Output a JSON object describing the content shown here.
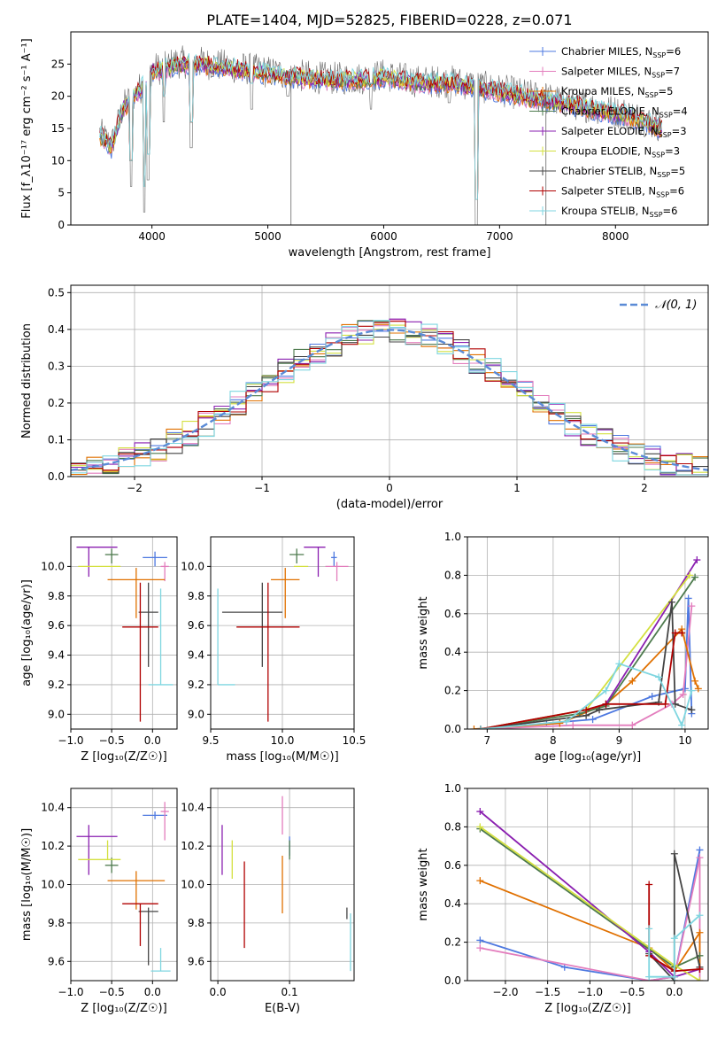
{
  "figure": {
    "title": "PLATE=1404, MJD=52825, FIBERID=0228, z=0.071"
  },
  "colors": [
    "#4e79e0",
    "#e37dbd",
    "#e07000",
    "#4d7a4d",
    "#8a1fb0",
    "#d4e040",
    "#444444",
    "#b00000",
    "#7fd6e0"
  ],
  "chart_data": [
    {
      "id": "spectrum",
      "type": "line",
      "xlabel": "wavelength [Angstrom, rest frame]",
      "ylabel": "Flux [f_λ10⁻¹⁷ erg cm⁻² s⁻¹ A⁻¹]",
      "xlim": [
        3300,
        8800
      ],
      "ylim": [
        0,
        30
      ],
      "xticks": [
        4000,
        5000,
        6000,
        7000,
        8000
      ],
      "yticks": [
        0,
        5,
        10,
        15,
        20,
        25
      ],
      "grid": false,
      "legend_position": "top-right",
      "legend": [
        {
          "name": "Chabrier MILES, N",
          "sub": "SSP",
          "suffix": "=6"
        },
        {
          "name": "Salpeter MILES, N",
          "sub": "SSP",
          "suffix": "=7"
        },
        {
          "name": "Kroupa MILES, N",
          "sub": "SSP",
          "suffix": "=5"
        },
        {
          "name": "Chabrier ELODIE, N",
          "sub": "SSP",
          "suffix": "=4"
        },
        {
          "name": "Salpeter ELODIE, N",
          "sub": "SSP",
          "suffix": "=3"
        },
        {
          "name": "Kroupa ELODIE, N",
          "sub": "SSP",
          "suffix": "=3"
        },
        {
          "name": "Chabrier STELIB, N",
          "sub": "SSP",
          "suffix": "=5"
        },
        {
          "name": "Salpeter STELIB, N",
          "sub": "SSP",
          "suffix": "=6"
        },
        {
          "name": "Kroupa STELIB, N",
          "sub": "SSP",
          "suffix": "=6"
        }
      ],
      "continuum": {
        "x": [
          3550,
          3650,
          3750,
          3850,
          3950,
          4000,
          4100,
          4200,
          4300,
          4400,
          4600,
          4800,
          5000,
          5200,
          5500,
          5800,
          6000,
          6300,
          6600,
          6900,
          7200,
          7500,
          7800,
          8100,
          8400
        ],
        "y": [
          14,
          12,
          18,
          20,
          22,
          24,
          24,
          25,
          25,
          25,
          24.5,
          24,
          23.5,
          23,
          22.5,
          22.5,
          23,
          22,
          22,
          21,
          20,
          19,
          18,
          17,
          15
        ]
      },
      "absorption_lines": [
        [
          3820,
          6
        ],
        [
          3934,
          2
        ],
        [
          3969,
          7
        ],
        [
          4102,
          16
        ],
        [
          4340,
          12
        ],
        [
          4861,
          18
        ],
        [
          5175,
          20
        ],
        [
          5890,
          18
        ],
        [
          6563,
          19
        ],
        [
          6800,
          0
        ]
      ]
    },
    {
      "id": "residuals",
      "type": "histogram",
      "xlabel": "(data-model)/error",
      "ylabel": "Normed distribution",
      "xlim": [
        -2.5,
        2.5
      ],
      "ylim": [
        0,
        0.52
      ],
      "xticks": [
        -2,
        -1,
        0,
        1,
        2
      ],
      "yticks": [
        0.0,
        0.1,
        0.2,
        0.3,
        0.4,
        0.5
      ],
      "grid": true,
      "legend_position": "top-right",
      "gaussian_label": "𝒩(0, 1)",
      "gaussian_color": "#5b8bd6"
    },
    {
      "id": "age-metallicity",
      "type": "scatter",
      "xlabel": "Z [log₁₀(Z/Z☉)]",
      "ylabel": "age  [log₁₀(age/yr)]",
      "xlim": [
        -1.0,
        0.3
      ],
      "ylim": [
        8.9,
        10.2
      ],
      "xticks": [
        -1.0,
        -0.5,
        0.0
      ],
      "yticks": [
        9.0,
        9.2,
        9.4,
        9.6,
        9.8,
        10.0
      ],
      "grid": true,
      "points": [
        {
          "x": 0.03,
          "y": 10.06,
          "xerr": [
            0.15,
            0.15
          ],
          "yerr": [
            0.06,
            0.04
          ]
        },
        {
          "x": 0.15,
          "y": 10.0,
          "xerr": [
            0.05,
            0.05
          ],
          "yerr": [
            0.1,
            0.03
          ]
        },
        {
          "x": -0.2,
          "y": 9.91,
          "xerr": [
            0.35,
            0.35
          ],
          "yerr": [
            0.26,
            0.08
          ]
        },
        {
          "x": -0.5,
          "y": 10.08,
          "xerr": [
            0.08,
            0.08
          ],
          "yerr": [
            0.06,
            0.04
          ]
        },
        {
          "x": -0.78,
          "y": 10.13,
          "xerr": [
            0.15,
            0.35
          ],
          "yerr": [
            0.2,
            0.0
          ]
        },
        {
          "x": -0.55,
          "y": 10.0,
          "xerr": [
            0.36,
            0.16
          ],
          "yerr": [
            0.0,
            0.0
          ]
        },
        {
          "x": -0.05,
          "y": 9.69,
          "xerr": [
            0.12,
            0.12
          ],
          "yerr": [
            0.37,
            0.2
          ]
        },
        {
          "x": -0.15,
          "y": 9.59,
          "xerr": [
            0.22,
            0.22
          ],
          "yerr": [
            0.64,
            0.3
          ]
        },
        {
          "x": 0.1,
          "y": 9.2,
          "xerr": [
            0.15,
            0.15
          ],
          "yerr": [
            0.0,
            0.65
          ]
        }
      ]
    },
    {
      "id": "age-mass",
      "type": "scatter",
      "xlabel": "mass [log₁₀(M/M☉)]",
      "ylabel": "",
      "xlim": [
        9.5,
        10.5
      ],
      "ylim": [
        8.9,
        10.2
      ],
      "xticks": [
        9.5,
        10.0,
        10.5
      ],
      "yticks": [
        9.0,
        9.2,
        9.4,
        9.6,
        9.8,
        10.0
      ],
      "grid": true,
      "points": [
        {
          "x": 10.36,
          "y": 10.06,
          "xerr": [
            0.02,
            0.02
          ],
          "yerr": [
            0.06,
            0.04
          ]
        },
        {
          "x": 10.38,
          "y": 10.0,
          "xerr": [
            0.08,
            0.08
          ],
          "yerr": [
            0.1,
            0.03
          ]
        },
        {
          "x": 10.02,
          "y": 9.91,
          "xerr": [
            0.1,
            0.1
          ],
          "yerr": [
            0.26,
            0.08
          ]
        },
        {
          "x": 10.1,
          "y": 10.08,
          "xerr": [
            0.05,
            0.05
          ],
          "yerr": [
            0.06,
            0.04
          ]
        },
        {
          "x": 10.25,
          "y": 10.13,
          "xerr": [
            0.1,
            0.05
          ],
          "yerr": [
            0.2,
            0.0
          ]
        },
        {
          "x": 10.13,
          "y": 10.0,
          "xerr": [
            0.05,
            0.05
          ],
          "yerr": [
            0.0,
            0.0
          ]
        },
        {
          "x": 9.86,
          "y": 9.69,
          "xerr": [
            0.28,
            0.14
          ],
          "yerr": [
            0.37,
            0.2
          ]
        },
        {
          "x": 9.9,
          "y": 9.59,
          "xerr": [
            0.22,
            0.22
          ],
          "yerr": [
            0.64,
            0.3
          ]
        },
        {
          "x": 9.55,
          "y": 9.2,
          "xerr": [
            0.0,
            0.12
          ],
          "yerr": [
            0.0,
            0.65
          ]
        }
      ]
    },
    {
      "id": "weight-age",
      "type": "line",
      "xlabel": "age  [log₁₀(age/yr)]",
      "ylabel": "mass weight",
      "xlim": [
        6.7,
        10.35
      ],
      "ylim": [
        0,
        1.0
      ],
      "xticks": [
        7,
        8,
        9,
        10
      ],
      "yticks": [
        0.0,
        0.2,
        0.4,
        0.6,
        0.8,
        1.0
      ],
      "grid": true,
      "series": [
        {
          "x": [
            6.9,
            7.9,
            8.6,
            9.5,
            10.0,
            10.05,
            10.1
          ],
          "y": [
            0.0,
            0.03,
            0.05,
            0.17,
            0.21,
            0.68,
            0.08
          ]
        },
        {
          "x": [
            6.9,
            8.3,
            9.2,
            9.8,
            9.97,
            10.1
          ],
          "y": [
            0.0,
            0.02,
            0.02,
            0.13,
            0.18,
            0.64
          ]
        },
        {
          "x": [
            6.8,
            8.1,
            8.8,
            9.2,
            9.95,
            10.15,
            10.2
          ],
          "y": [
            0.0,
            0.03,
            0.13,
            0.25,
            0.52,
            0.25,
            0.21
          ]
        },
        {
          "x": [
            6.9,
            8.4,
            8.8,
            10.15
          ],
          "y": [
            0.0,
            0.08,
            0.12,
            0.79
          ]
        },
        {
          "x": [
            6.9,
            8.5,
            8.8,
            10.18
          ],
          "y": [
            0.0,
            0.1,
            0.13,
            0.88
          ]
        },
        {
          "x": [
            6.9,
            8.5,
            10.07
          ],
          "y": [
            0.0,
            0.1,
            0.8
          ]
        },
        {
          "x": [
            6.9,
            8.5,
            8.7,
            9.6,
            9.8,
            9.85,
            10.1
          ],
          "y": [
            0.0,
            0.07,
            0.1,
            0.14,
            0.66,
            0.13,
            0.1
          ]
        },
        {
          "x": [
            6.9,
            8.5,
            8.8,
            9.7,
            9.85,
            9.95
          ],
          "y": [
            0.0,
            0.1,
            0.13,
            0.13,
            0.5,
            0.5
          ]
        },
        {
          "x": [
            6.9,
            8.2,
            8.8,
            9.0,
            9.6,
            9.95,
            10.1
          ],
          "y": [
            0.0,
            0.04,
            0.2,
            0.34,
            0.27,
            0.02,
            0.2
          ]
        }
      ]
    },
    {
      "id": "mass-metallicity",
      "type": "scatter",
      "xlabel": "Z [log₁₀(Z/Z☉)]",
      "ylabel": "mass [log₁₀(M/M☉)]",
      "xlim": [
        -1.0,
        0.3
      ],
      "ylim": [
        9.5,
        10.5
      ],
      "xticks": [
        -1.0,
        -0.5,
        0.0
      ],
      "yticks": [
        9.6,
        9.8,
        10.0,
        10.2,
        10.4
      ],
      "grid": true,
      "points": [
        {
          "x": 0.03,
          "y": 10.36,
          "xerr": [
            0.15,
            0.15
          ],
          "yerr": [
            0.02,
            0.02
          ]
        },
        {
          "x": 0.15,
          "y": 10.38,
          "xerr": [
            0.05,
            0.05
          ],
          "yerr": [
            0.15,
            0.05
          ]
        },
        {
          "x": -0.2,
          "y": 10.02,
          "xerr": [
            0.35,
            0.35
          ],
          "yerr": [
            0.15,
            0.05
          ]
        },
        {
          "x": -0.5,
          "y": 10.1,
          "xerr": [
            0.08,
            0.08
          ],
          "yerr": [
            0.04,
            0.04
          ]
        },
        {
          "x": -0.78,
          "y": 10.25,
          "xerr": [
            0.15,
            0.35
          ],
          "yerr": [
            0.2,
            0.06
          ]
        },
        {
          "x": -0.55,
          "y": 10.13,
          "xerr": [
            0.36,
            0.16
          ],
          "yerr": [
            0.0,
            0.1
          ]
        },
        {
          "x": -0.05,
          "y": 9.86,
          "xerr": [
            0.12,
            0.12
          ],
          "yerr": [
            0.28,
            0.02
          ]
        },
        {
          "x": -0.15,
          "y": 9.9,
          "xerr": [
            0.22,
            0.22
          ],
          "yerr": [
            0.22,
            0.0
          ]
        },
        {
          "x": 0.1,
          "y": 9.55,
          "xerr": [
            0.12,
            0.12
          ],
          "yerr": [
            0.0,
            0.12
          ]
        }
      ]
    },
    {
      "id": "mass-extinction",
      "type": "scatter",
      "xlabel": "E(B-V)",
      "ylabel": "",
      "xlim": [
        -0.01,
        0.19
      ],
      "ylim": [
        9.5,
        10.5
      ],
      "xticks": [
        0.0,
        0.1
      ],
      "yticks": [
        9.6,
        9.8,
        10.0,
        10.2,
        10.4
      ],
      "grid": true,
      "points": [
        {
          "x": 0.1,
          "y": 10.2,
          "xerr": [
            0,
            0
          ],
          "yerr": [
            0.05,
            0.05
          ]
        },
        {
          "x": 0.09,
          "y": 10.36,
          "xerr": [
            0,
            0
          ],
          "yerr": [
            0.1,
            0.1
          ]
        },
        {
          "x": 0.09,
          "y": 10.0,
          "xerr": [
            0,
            0
          ],
          "yerr": [
            0.15,
            0.15
          ]
        },
        {
          "x": 0.1,
          "y": 10.18,
          "xerr": [
            0,
            0
          ],
          "yerr": [
            0.05,
            0.05
          ]
        },
        {
          "x": 0.006,
          "y": 10.18,
          "xerr": [
            0,
            0
          ],
          "yerr": [
            0.13,
            0.13
          ]
        },
        {
          "x": 0.02,
          "y": 10.13,
          "xerr": [
            0,
            0
          ],
          "yerr": [
            0.1,
            0.1
          ]
        },
        {
          "x": 0.18,
          "y": 9.85,
          "xerr": [
            0,
            0
          ],
          "yerr": [
            0.03,
            0.03
          ]
        },
        {
          "x": 0.037,
          "y": 9.9,
          "xerr": [
            0,
            0
          ],
          "yerr": [
            0.23,
            0.22
          ]
        },
        {
          "x": 0.185,
          "y": 9.7,
          "xerr": [
            0,
            0
          ],
          "yerr": [
            0.15,
            0.15
          ]
        }
      ]
    },
    {
      "id": "weight-metallicity",
      "type": "line",
      "xlabel": "Z [log₁₀(Z/Z☉)]",
      "ylabel": "mass weight",
      "xlim": [
        -2.45,
        0.4
      ],
      "ylim": [
        0,
        1.0
      ],
      "xticks": [
        -2.0,
        -1.5,
        -1.0,
        -0.5,
        0.0
      ],
      "yticks": [
        0.0,
        0.2,
        0.4,
        0.6,
        0.8,
        1.0
      ],
      "grid": true,
      "series": [
        {
          "x": [
            -2.3,
            -1.3,
            -0.3,
            0.0,
            0.3
          ],
          "y": [
            0.21,
            0.07,
            0.0,
            0.02,
            0.68
          ]
        },
        {
          "x": [
            -2.3,
            -0.3,
            -0.0,
            0.3,
            0.3
          ],
          "y": [
            0.17,
            0.0,
            0.02,
            0.64,
            0.0
          ]
        },
        {
          "x": [
            -2.3,
            -0.3,
            0.0,
            0.3,
            0.3
          ],
          "y": [
            0.52,
            0.17,
            0.05,
            0.25,
            0.06
          ]
        },
        {
          "x": [
            -2.3,
            0.0,
            0.3
          ],
          "y": [
            0.79,
            0.07,
            0.13
          ]
        },
        {
          "x": [
            -2.3,
            -0.3,
            0.0,
            0.3
          ],
          "y": [
            0.88,
            0.15,
            0.02,
            0.06
          ]
        },
        {
          "x": [
            -2.3,
            0.0,
            0.3
          ],
          "y": [
            0.8,
            0.08,
            0.0
          ]
        },
        {
          "x": [
            -0.3,
            0.0,
            0.0,
            0.3
          ],
          "y": [
            0.14,
            0.0,
            0.66,
            0.07
          ]
        },
        {
          "x": [
            -0.3,
            -0.3,
            0.0,
            0.3
          ],
          "y": [
            0.5,
            0.13,
            0.05,
            0.06
          ]
        },
        {
          "x": [
            -0.3,
            -0.3,
            0.0,
            0.0,
            0.3
          ],
          "y": [
            0.27,
            0.02,
            0.02,
            0.22,
            0.34
          ]
        }
      ]
    }
  ]
}
